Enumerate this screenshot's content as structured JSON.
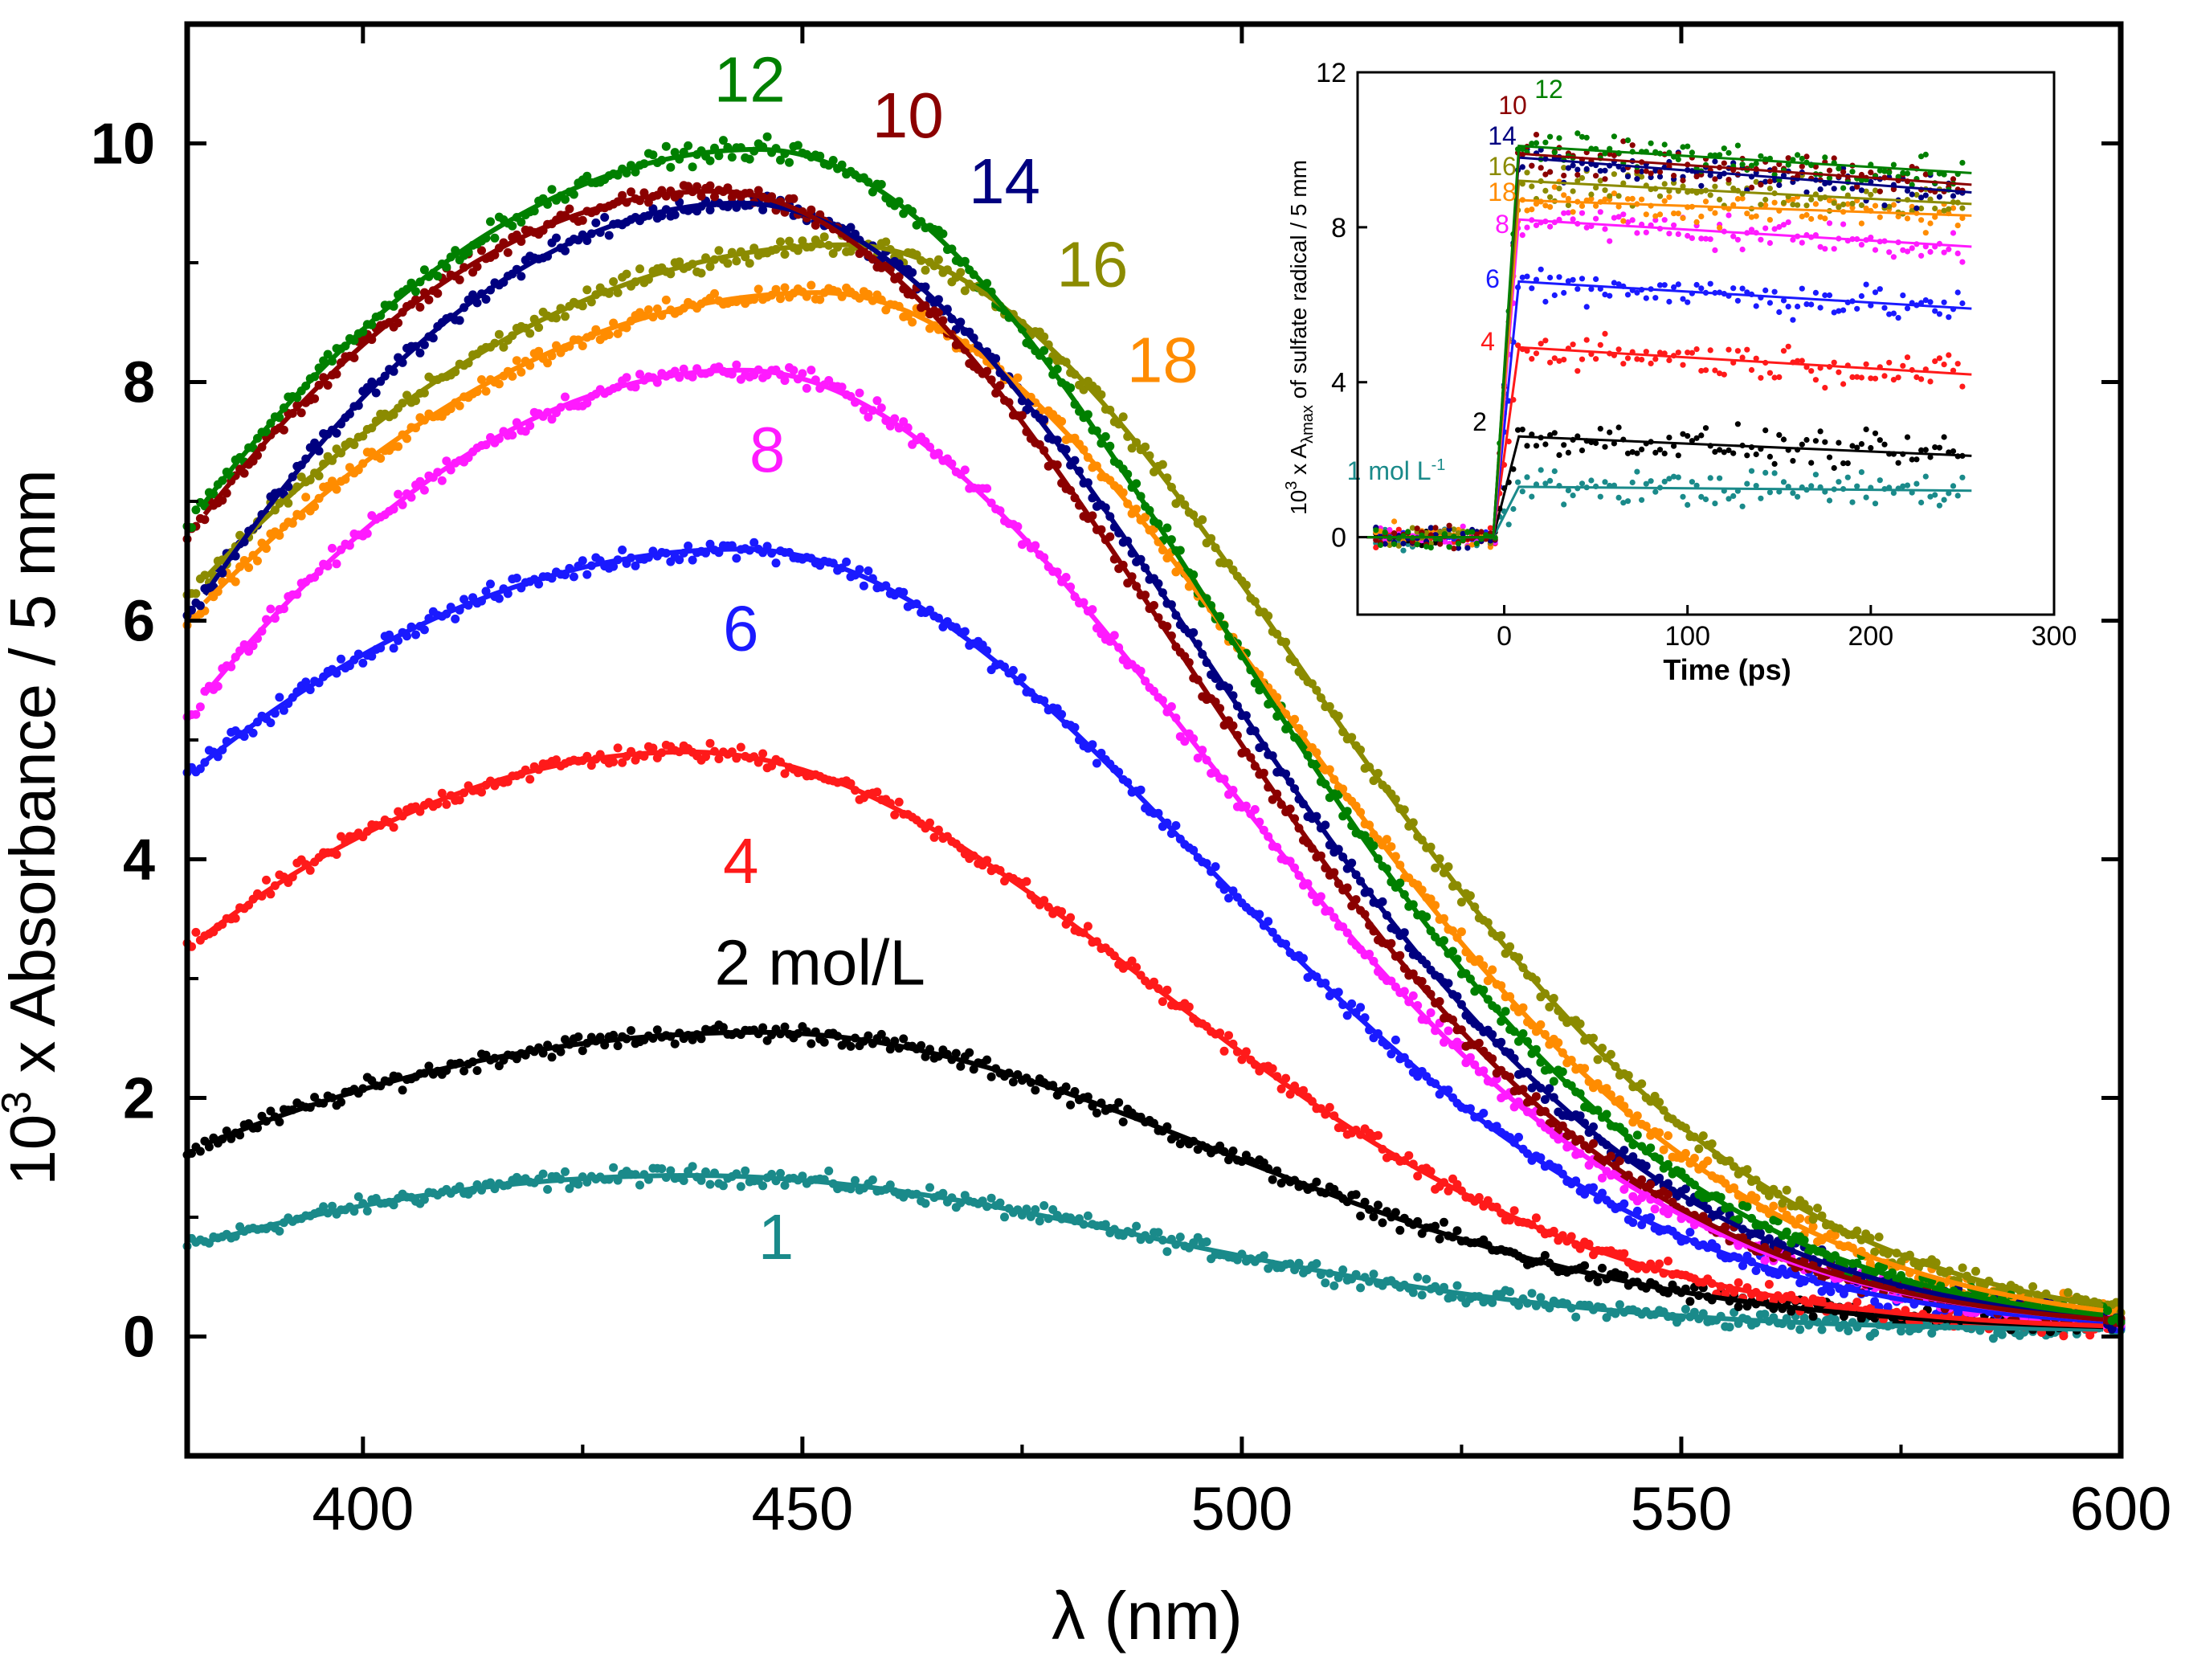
{
  "chart_data": [
    {
      "type": "scatter",
      "title": "",
      "xlabel": "λ (nm)",
      "ylabel_base": "10",
      "ylabel_exp": "3",
      "ylabel_rest": "x Absorbance / 5 mm",
      "xlim": [
        380,
        600
      ],
      "ylim": [
        -1,
        11
      ],
      "xticks": [
        400,
        450,
        500,
        550,
        600
      ],
      "xtick_labels": [
        "400",
        "450",
        "500",
        "550",
        "600"
      ],
      "yticks": [
        0,
        2,
        4,
        6,
        8,
        10
      ],
      "ytick_labels": [
        "0",
        "2",
        "4",
        "6",
        "8",
        "10"
      ],
      "series": [
        {
          "name": "1",
          "label": "1",
          "color": "#1a8a8a",
          "start": 0.75,
          "peak": 1.35,
          "peak_x": 437,
          "label_x": 447,
          "label_y": 0.65
        },
        {
          "name": "2 mol/L",
          "label": "2 mol/L",
          "color": "#000000",
          "start": 1.55,
          "peak": 2.55,
          "peak_x": 445,
          "label_x": 452,
          "label_y": 2.95
        },
        {
          "name": "4",
          "label": "4",
          "color": "#ff1a1a",
          "start": 3.25,
          "peak": 4.9,
          "peak_x": 437,
          "label_x": 443,
          "label_y": 3.8
        },
        {
          "name": "6",
          "label": "6",
          "color": "#1a1aff",
          "start": 4.7,
          "peak": 6.6,
          "peak_x": 443,
          "label_x": 443,
          "label_y": 5.75
        },
        {
          "name": "8",
          "label": "8",
          "color": "#ff1aff",
          "start": 5.2,
          "peak": 8.1,
          "peak_x": 443,
          "label_x": 446,
          "label_y": 7.25
        },
        {
          "name": "18",
          "label": "18",
          "color": "#ff8c00",
          "start": 6.0,
          "peak": 8.75,
          "peak_x": 452,
          "label_x": 491,
          "label_y": 8.0
        },
        {
          "name": "16",
          "label": "16",
          "color": "#8b8b00",
          "start": 6.2,
          "peak": 9.15,
          "peak_x": 455,
          "label_x": 483,
          "label_y": 8.8
        },
        {
          "name": "14",
          "label": "14",
          "color": "#000080",
          "start": 6.0,
          "peak": 9.5,
          "peak_x": 443,
          "label_x": 473,
          "label_y": 9.5
        },
        {
          "name": "10",
          "label": "10",
          "color": "#8b0000",
          "start": 6.7,
          "peak": 9.6,
          "peak_x": 440,
          "label_x": 462,
          "label_y": 10.05
        },
        {
          "name": "12",
          "label": "12",
          "color": "#008000",
          "start": 6.8,
          "peak": 9.95,
          "peak_x": 445,
          "label_x": 444,
          "label_y": 10.35
        }
      ]
    },
    {
      "type": "scatter",
      "title": "inset",
      "xlabel": "Time (ps)",
      "ylabel_base": "10",
      "ylabel_exp": "3",
      "ylabel_mid": "x A",
      "ylabel_sub": "λmax",
      "ylabel_rest": "of sulfate radical / 5 mm",
      "xlim": [
        -80,
        300
      ],
      "ylim": [
        -2,
        12
      ],
      "xticks": [
        0,
        100,
        200,
        300
      ],
      "xtick_labels": [
        "0",
        "100",
        "200",
        "300"
      ],
      "yticks": [
        0,
        4,
        8,
        12
      ],
      "ytick_labels": [
        "0",
        "4",
        "8",
        "12"
      ],
      "series": [
        {
          "name": "1 mol L-1",
          "label_base": "1 mol L",
          "label_exp": "-1",
          "color": "#1a8a8a",
          "plateau_start": 1.3,
          "plateau_end": 1.2
        },
        {
          "name": "2",
          "label": "2",
          "color": "#000000",
          "plateau_start": 2.6,
          "plateau_end": 2.1
        },
        {
          "name": "4",
          "label": "4",
          "color": "#ff1a1a",
          "plateau_start": 4.9,
          "plateau_end": 4.2
        },
        {
          "name": "6",
          "label": "6",
          "color": "#1a1aff",
          "plateau_start": 6.6,
          "plateau_end": 5.9
        },
        {
          "name": "8",
          "label": "8",
          "color": "#ff1aff",
          "plateau_start": 8.2,
          "plateau_end": 7.5
        },
        {
          "name": "18",
          "label": "18",
          "color": "#ff8c00",
          "plateau_start": 8.7,
          "plateau_end": 8.3
        },
        {
          "name": "16",
          "label": "16",
          "color": "#8b8b00",
          "plateau_start": 9.2,
          "plateau_end": 8.6
        },
        {
          "name": "14",
          "label": "14",
          "color": "#000080",
          "plateau_start": 9.8,
          "plateau_end": 8.9
        },
        {
          "name": "10",
          "label": "10",
          "color": "#8b0000",
          "plateau_start": 9.9,
          "plateau_end": 9.1
        },
        {
          "name": "12",
          "label": "12",
          "color": "#008000",
          "plateau_start": 10.1,
          "plateau_end": 9.4
        }
      ]
    }
  ]
}
